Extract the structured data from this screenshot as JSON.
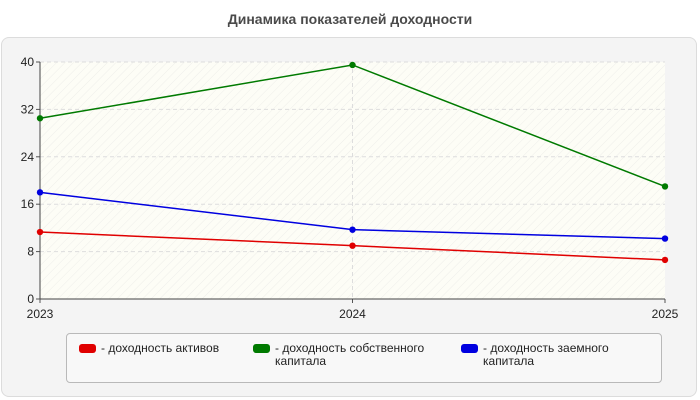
{
  "chart_data": {
    "type": "line",
    "title": "Динамика показателей доходности",
    "x": [
      "2023",
      "2024",
      "2025"
    ],
    "ylim": [
      0,
      40
    ],
    "yticks": [
      0,
      8,
      16,
      24,
      32,
      40
    ],
    "grid": true,
    "legend_position": "bottom",
    "series": [
      {
        "name": "- доходность активов",
        "color": "#e00000",
        "values": [
          11.3,
          9.0,
          6.6
        ]
      },
      {
        "name": "- доходность собственного капитала",
        "color": "#007a00",
        "values": [
          30.5,
          39.5,
          19.0
        ]
      },
      {
        "name": "- доходность заемного капитала",
        "color": "#0000e0",
        "values": [
          18.0,
          11.7,
          10.2
        ]
      }
    ]
  }
}
